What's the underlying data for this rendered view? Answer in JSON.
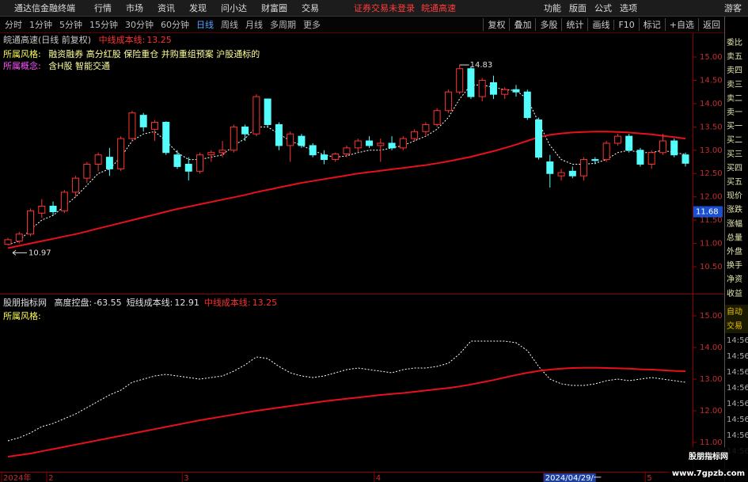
{
  "menu_bar": {
    "app_title": "通达信金融终端",
    "items": [
      "行情",
      "市场",
      "资讯",
      "发现",
      "问小达",
      "财富圈",
      "交易"
    ],
    "status": [
      "证券交易未登录",
      "皖通高速"
    ],
    "right_items": [
      "功能",
      "版面",
      "公式",
      "选项"
    ],
    "user": "游客"
  },
  "toolbar": {
    "periods": [
      "分时",
      "1分钟",
      "5分钟",
      "15分钟",
      "30分钟",
      "60分钟",
      "日线",
      "周线",
      "月线",
      "多周期",
      "更多"
    ],
    "active": "日线",
    "buttons": [
      "复权",
      "叠加",
      "多股",
      "统计",
      "画线",
      "F10",
      "标记",
      "+自选",
      "返回"
    ]
  },
  "main_panel": {
    "type": "candlestick",
    "title": "皖通高速(日线 前复权)",
    "cost_label": "中线成本线:",
    "cost_value": 13.25,
    "style_label": "所属风格:",
    "styles": "融资融券 高分红股 保险重仓 并购重组预案 沪股通标的",
    "concept_label": "所属概念:",
    "concepts": "含H股 智能交通",
    "up_color": "#ff3232",
    "down_color": "#54fcfc",
    "candles": [
      [
        10.98,
        11.12,
        10.97,
        11.08
      ],
      [
        11.05,
        11.25,
        11.0,
        11.2
      ],
      [
        11.2,
        11.75,
        11.15,
        11.7
      ],
      [
        11.65,
        11.95,
        11.55,
        11.8
      ],
      [
        11.8,
        11.9,
        11.6,
        11.68
      ],
      [
        11.7,
        12.15,
        11.65,
        12.1
      ],
      [
        12.1,
        12.45,
        12.0,
        12.4
      ],
      [
        12.4,
        12.75,
        12.3,
        12.7
      ],
      [
        12.7,
        12.95,
        12.55,
        12.9
      ],
      [
        12.85,
        13.05,
        12.45,
        12.6
      ],
      [
        12.6,
        13.3,
        12.55,
        13.25
      ],
      [
        13.25,
        13.85,
        13.2,
        13.8
      ],
      [
        13.75,
        13.8,
        13.4,
        13.5
      ],
      [
        13.45,
        13.65,
        13.2,
        13.6
      ],
      [
        13.6,
        13.62,
        12.9,
        12.95
      ],
      [
        12.9,
        13.0,
        12.6,
        12.65
      ],
      [
        12.7,
        12.85,
        12.35,
        12.55
      ],
      [
        12.55,
        12.95,
        12.5,
        12.9
      ],
      [
        12.9,
        13.0,
        12.75,
        12.95
      ],
      [
        12.95,
        13.2,
        12.85,
        13.0
      ],
      [
        13.0,
        13.55,
        12.95,
        13.5
      ],
      [
        13.5,
        13.55,
        13.2,
        13.35
      ],
      [
        13.35,
        14.2,
        13.3,
        14.15
      ],
      [
        14.1,
        14.1,
        13.5,
        13.55
      ],
      [
        13.55,
        13.6,
        13.0,
        13.1
      ],
      [
        13.1,
        13.4,
        12.75,
        13.35
      ],
      [
        13.3,
        13.35,
        13.05,
        13.1
      ],
      [
        13.1,
        13.15,
        12.85,
        12.9
      ],
      [
        12.9,
        13.0,
        12.7,
        12.8
      ],
      [
        12.8,
        12.95,
        12.75,
        12.92
      ],
      [
        12.92,
        13.1,
        12.85,
        13.05
      ],
      [
        13.05,
        13.25,
        12.95,
        13.2
      ],
      [
        13.2,
        13.3,
        13.05,
        13.1
      ],
      [
        13.1,
        13.25,
        12.75,
        13.15
      ],
      [
        13.15,
        13.3,
        13.0,
        13.05
      ],
      [
        13.05,
        13.3,
        13.0,
        13.25
      ],
      [
        13.25,
        13.45,
        13.2,
        13.4
      ],
      [
        13.4,
        13.6,
        13.3,
        13.55
      ],
      [
        13.55,
        13.9,
        13.5,
        13.85
      ],
      [
        13.85,
        14.3,
        13.8,
        14.25
      ],
      [
        14.25,
        14.83,
        14.2,
        14.75
      ],
      [
        14.75,
        14.8,
        14.1,
        14.15
      ],
      [
        14.15,
        14.55,
        14.05,
        14.5
      ],
      [
        14.45,
        14.6,
        14.1,
        14.2
      ],
      [
        14.2,
        14.35,
        14.1,
        14.3
      ],
      [
        14.3,
        14.4,
        14.15,
        14.25
      ],
      [
        14.25,
        14.3,
        13.65,
        13.7
      ],
      [
        13.65,
        13.7,
        12.8,
        12.85
      ],
      [
        12.75,
        12.9,
        12.2,
        12.5
      ],
      [
        12.45,
        12.6,
        12.35,
        12.52
      ],
      [
        12.55,
        12.65,
        12.4,
        12.45
      ],
      [
        12.45,
        12.85,
        12.35,
        12.8
      ],
      [
        12.8,
        12.85,
        12.7,
        12.78
      ],
      [
        12.8,
        13.2,
        12.75,
        13.15
      ],
      [
        13.15,
        13.35,
        13.1,
        13.3
      ],
      [
        13.3,
        13.35,
        12.95,
        13.0
      ],
      [
        13.0,
        13.05,
        12.65,
        12.7
      ],
      [
        12.7,
        13.0,
        12.6,
        12.95
      ],
      [
        12.95,
        13.35,
        12.9,
        13.2
      ],
      [
        13.2,
        13.25,
        12.85,
        12.9
      ],
      [
        12.9,
        12.95,
        12.65,
        12.72
      ]
    ],
    "lines": [
      {
        "color": "#ffffff",
        "style": "dashed",
        "values": [
          10.97,
          11.05,
          11.3,
          11.5,
          11.6,
          11.8,
          12.0,
          12.25,
          12.5,
          12.6,
          12.85,
          13.2,
          13.35,
          13.4,
          13.2,
          12.95,
          12.8,
          12.8,
          12.85,
          12.9,
          13.1,
          13.25,
          13.5,
          13.5,
          13.35,
          13.2,
          13.1,
          13.0,
          12.9,
          12.85,
          12.88,
          12.95,
          13.0,
          13.0,
          13.05,
          13.1,
          13.2,
          13.3,
          13.45,
          13.7,
          14.1,
          14.4,
          14.4,
          14.35,
          14.3,
          14.28,
          14.1,
          13.6,
          13.1,
          12.8,
          12.7,
          12.7,
          12.72,
          12.8,
          12.95,
          13.0,
          12.95,
          12.95,
          13.0,
          12.95,
          12.91
        ]
      },
      {
        "color": "#e8101a",
        "style": "solid",
        "values": [
          10.9,
          10.95,
          11.0,
          11.05,
          11.1,
          11.15,
          11.2,
          11.26,
          11.32,
          11.38,
          11.44,
          11.5,
          11.56,
          11.62,
          11.68,
          11.74,
          11.79,
          11.84,
          11.89,
          11.94,
          11.99,
          12.04,
          12.1,
          12.15,
          12.2,
          12.25,
          12.3,
          12.34,
          12.38,
          12.42,
          12.46,
          12.5,
          12.53,
          12.56,
          12.59,
          12.62,
          12.65,
          12.68,
          12.72,
          12.76,
          12.81,
          12.86,
          12.92,
          12.98,
          13.05,
          13.12,
          13.2,
          13.28,
          13.33,
          13.36,
          13.38,
          13.39,
          13.4,
          13.4,
          13.39,
          13.38,
          13.36,
          13.34,
          13.31,
          13.28,
          13.25
        ]
      }
    ],
    "ylim": [
      9.94,
      15.51
    ],
    "yticks": [
      {
        "value": 15,
        "label": "15.00"
      },
      {
        "value": 14.5,
        "label": "14.50"
      },
      {
        "value": 14,
        "label": "14.00"
      },
      {
        "value": 13.5,
        "label": "13.50"
      },
      {
        "value": 13,
        "label": "13.00"
      },
      {
        "value": 12.5,
        "label": "12.50"
      },
      {
        "value": 12,
        "label": "12.00"
      },
      {
        "value": 11.5,
        "label": "11.50"
      },
      {
        "value": 11,
        "label": "11.00"
      },
      {
        "value": 10.5,
        "label": "10.50"
      }
    ],
    "high_mark": 14.83,
    "low_mark": 10.97,
    "cursor_price": 11.68,
    "cursor_color": "#1a4fd0"
  },
  "indicator_panel": {
    "title": "股朋指标网",
    "items": [
      {
        "label": "高度控盘:",
        "value": -63.55,
        "color": "#e0e0e0"
      },
      {
        "label": "短线成本线:",
        "value": 12.91,
        "color": "#e0e0e0"
      },
      {
        "label": "中线成本线:",
        "value": 13.25,
        "color": "#ff3030"
      }
    ],
    "style_label": "所属风格:",
    "lines": [
      {
        "color": "#ffffff",
        "style": "dashed",
        "values": [
          11.05,
          11.15,
          11.3,
          11.5,
          11.6,
          11.75,
          11.9,
          12.1,
          12.3,
          12.5,
          12.65,
          12.9,
          13.0,
          13.1,
          13.15,
          13.1,
          13.05,
          13.0,
          13.05,
          13.1,
          13.25,
          13.45,
          13.7,
          13.65,
          13.4,
          13.2,
          13.1,
          13.05,
          13.1,
          13.2,
          13.3,
          13.35,
          13.3,
          13.25,
          13.2,
          13.3,
          13.35,
          13.35,
          13.4,
          13.5,
          13.8,
          14.2,
          14.2,
          14.2,
          14.2,
          14.15,
          13.9,
          13.4,
          13.0,
          12.85,
          12.8,
          12.8,
          12.85,
          12.95,
          13.0,
          12.95,
          13.0,
          13.05,
          13.0,
          12.95,
          12.9
        ]
      },
      {
        "color": "#e8101a",
        "style": "solid",
        "values": [
          10.55,
          10.6,
          10.65,
          10.72,
          10.79,
          10.86,
          10.93,
          11.0,
          11.07,
          11.14,
          11.21,
          11.28,
          11.35,
          11.42,
          11.49,
          11.56,
          11.63,
          11.7,
          11.76,
          11.82,
          11.88,
          11.94,
          12.0,
          12.05,
          12.1,
          12.15,
          12.2,
          12.25,
          12.3,
          12.34,
          12.38,
          12.42,
          12.46,
          12.5,
          12.53,
          12.56,
          12.6,
          12.64,
          12.68,
          12.72,
          12.77,
          12.83,
          12.9,
          12.97,
          13.05,
          13.13,
          13.2,
          13.26,
          13.3,
          13.33,
          13.35,
          13.36,
          13.36,
          13.35,
          13.34,
          13.33,
          13.31,
          13.3,
          13.28,
          13.26,
          13.25
        ]
      }
    ],
    "ylim": [
      10.075,
      15.625
    ],
    "yticks": [
      {
        "value": 15,
        "label": "15.00"
      },
      {
        "value": 14,
        "label": "14.00"
      },
      {
        "value": 13,
        "label": "13.00"
      },
      {
        "value": 12,
        "label": "12.00"
      },
      {
        "value": 11,
        "label": "11.00"
      }
    ]
  },
  "side_panel": {
    "logo": "L",
    "labels": [
      "委比",
      "卖五",
      "卖四",
      "卖三",
      "卖二",
      "卖一",
      "买一",
      "买二",
      "买三",
      "买四",
      "买五",
      "现价",
      "涨跌",
      "涨幅",
      "总量",
      "外盘",
      "换手",
      "净资",
      "收益"
    ],
    "auto": "自动",
    "trade": "交易",
    "times": [
      "14:56",
      "14:56",
      "14:56",
      "14:56",
      "14:56",
      "14:56",
      "14:56",
      "14:56"
    ]
  },
  "date_axis": [
    "2024年",
    null,
    null,
    null,
    "2",
    null,
    null,
    null,
    null,
    null,
    null,
    null,
    null,
    null,
    null,
    null,
    "3",
    null,
    null,
    null,
    null,
    null,
    null,
    null,
    null,
    null,
    null,
    null,
    null,
    null,
    null,
    null,
    null,
    "4",
    null,
    null,
    null,
    null,
    null,
    null,
    null,
    null,
    null,
    null,
    null,
    null,
    null,
    null,
    "2024/04/29/一",
    null,
    null,
    null,
    null,
    null,
    null,
    null,
    null,
    "5",
    null,
    null,
    null
  ],
  "date_axis_highlight": "2024/04/29/一",
  "watermark": [
    "股朋指标网",
    "www.7gpzb.com"
  ]
}
